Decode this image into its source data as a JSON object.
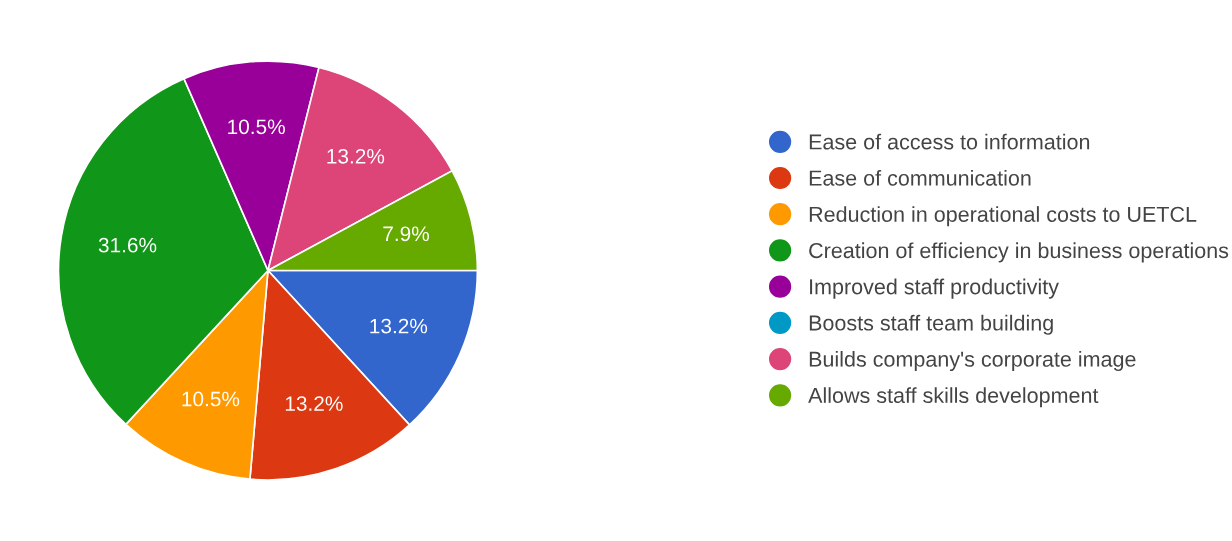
{
  "chart_data": {
    "type": "pie",
    "categories": [
      "Ease of access to information",
      "Ease of communication",
      "Reduction in operational costs to UETCL",
      "Creation of efficiency in business operations",
      "Improved staff productivity",
      "Boosts staff team building",
      "Builds company's corporate image",
      "Allows staff skills development"
    ],
    "values": [
      13.2,
      13.2,
      10.5,
      31.6,
      10.5,
      0,
      13.2,
      7.9
    ],
    "colors": [
      "#3366cc",
      "#dc3912",
      "#ff9900",
      "#109618",
      "#990099",
      "#0099c6",
      "#dd4477",
      "#66aa00"
    ],
    "value_labels": [
      "13.2%",
      "13.2%",
      "10.5%",
      "31.6%",
      "10.5%",
      null,
      "13.2%",
      "7.9%"
    ],
    "legend": "right"
  }
}
